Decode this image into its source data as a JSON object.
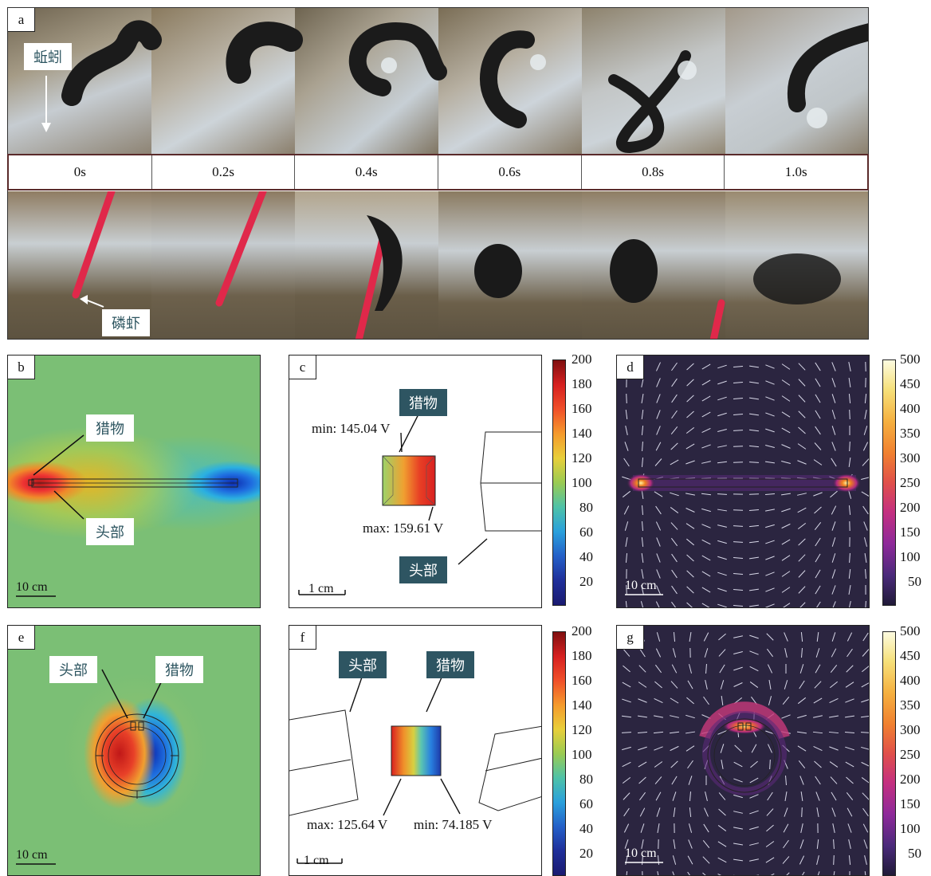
{
  "panel_a": {
    "label": "a",
    "times": [
      "0s",
      "0.2s",
      "0.4s",
      "0.6s",
      "0.8s",
      "1.0s"
    ],
    "top_label": "蚯蚓",
    "bottom_label": "磷虾"
  },
  "panel_b": {
    "label": "b",
    "prey_label": "猎物",
    "head_label": "头部",
    "scale": "10 cm"
  },
  "panel_c": {
    "label": "c",
    "prey_label": "猎物",
    "head_label": "头部",
    "min_text": "min: 145.04 V",
    "max_text": "max: 159.61 V",
    "scale": "1 cm"
  },
  "panel_d": {
    "label": "d",
    "scale": "10 cm"
  },
  "panel_e": {
    "label": "e",
    "head_label": "头部",
    "prey_label": "猎物",
    "scale": "10 cm"
  },
  "panel_f": {
    "label": "f",
    "head_label": "头部",
    "prey_label": "猎物",
    "max_text": "max: 125.64 V",
    "min_text": "min: 74.185 V",
    "scale": "1 cm"
  },
  "panel_g": {
    "label": "g",
    "scale": "10 cm"
  },
  "colorbar_voltage": {
    "ticks": [
      "200",
      "180",
      "160",
      "140",
      "120",
      "100",
      "80",
      "60",
      "40",
      "20"
    ]
  },
  "colorbar_field": {
    "ticks": [
      "500",
      "450",
      "400",
      "350",
      "300",
      "250",
      "200",
      "150",
      "100",
      "50"
    ]
  }
}
